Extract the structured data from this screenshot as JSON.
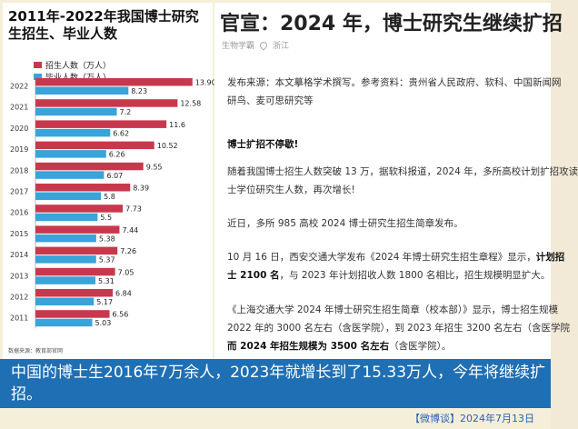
{
  "chart": {
    "title": "2011年-2022年我国博士研究生招生、毕业人数",
    "source": "数据来源：教育部官网",
    "legend": {
      "enroll": "招生人数（万人）",
      "grad": "毕业人数（万人）",
      "enroll_color": "#c8384c",
      "grad_color": "#3aa3d9"
    }
  },
  "chart_data": {
    "type": "bar",
    "orientation": "horizontal",
    "title": "2011年-2022年我国博士研究生招生、毕业人数",
    "categories": [
      "2022",
      "2021",
      "2020",
      "2019",
      "2018",
      "2017",
      "2016",
      "2015",
      "2014",
      "2013",
      "2012",
      "2011"
    ],
    "series": [
      {
        "name": "招生人数（万人）",
        "values": [
          13.9,
          12.58,
          11.6,
          10.52,
          9.55,
          8.39,
          7.73,
          7.44,
          7.26,
          7.05,
          6.84,
          6.56
        ]
      },
      {
        "name": "毕业人数（万人）",
        "values": [
          8.23,
          7.2,
          6.62,
          6.26,
          6.07,
          5.8,
          5.5,
          5.38,
          5.37,
          5.31,
          5.17,
          5.03
        ]
      }
    ],
    "value_labels": {
      "enroll": [
        "13.90",
        "12.58",
        "11.6",
        "10.52",
        "9.55",
        "8.39",
        "7.73",
        "7.44",
        "7.26",
        "7.05",
        "6.84",
        "6.56"
      ],
      "grad": [
        "8.23",
        "7.2",
        "6.62",
        "6.26",
        "6.07",
        "5.8",
        "5.5",
        "5.38",
        "5.37",
        "5.31",
        "5.17",
        "5.03"
      ]
    },
    "xlim": [
      0,
      14
    ]
  },
  "article": {
    "title": "官宣：2024 年，博士研究生继续扩招",
    "meta_source": "生物学霸",
    "meta_location": "浙江",
    "p1_line1": "发布来源：本文摹格学术撰写。参考资料：贵州省人民政府、软科、中国新闻网",
    "p1_line2": "研鸟、麦可思研究等",
    "p2": "博士扩招不停歇!",
    "p3_line1": "随着我国博士招生人数突破 13 万，据软科报道，2024 年，多所高校计划扩招攻读",
    "p3_line2": "士学位研究生人数，再次增长!",
    "p4": "近日，多所 985 高校 2024 博士研究生招生简章发布。",
    "p5_line1_a": "10 月 16 日，西安交通大学发布《2024 年博士研究生招生章程》显示，",
    "p5_line1_b": "计划招",
    "p5_line2_a": "士 2100 名",
    "p5_line2_b": "，与 2023 年计划招收人数 1800 名相比，招生规模明显扩大。",
    "p6_line1": "《上海交通大学 2024 年博士研究生招生简章（校本部）》显示，博士招生规模",
    "p6_line2": "2022 年的 3000 名左右（含医学院），到 2023 年招生 3200 名左右（含医学院",
    "p6_line3_a": "而 2024 年招生规模为 3500 名左右",
    "p6_line3_b": "（含医学院）。"
  },
  "caption": {
    "text": "中国的博士生2016年7万余人，2023年就增长到了15.33万人，今年将继续扩招。",
    "stamp": "【微博谈】2024年7月13日",
    "bg_color": "#1f6fb5"
  }
}
